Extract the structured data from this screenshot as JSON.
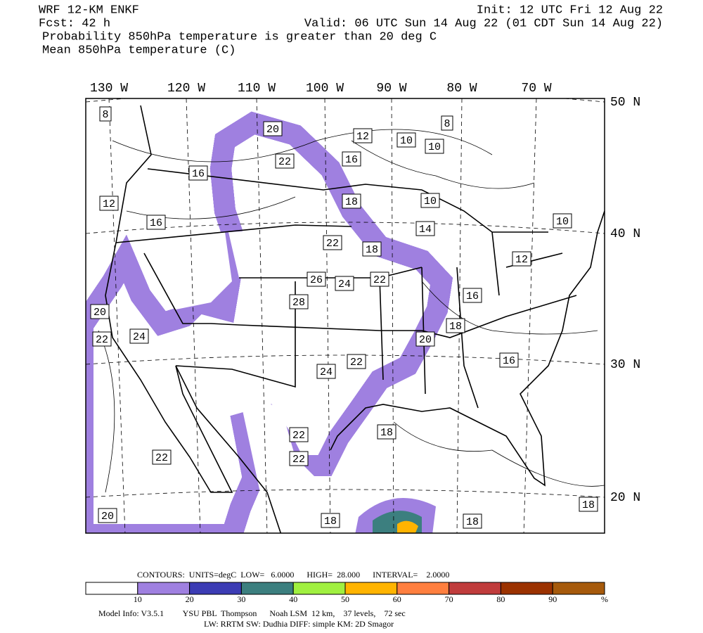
{
  "header": {
    "model": "WRF 12-KM ENKF",
    "init": "Init: 12 UTC Fri 12 Aug 22",
    "fcst": "Fcst:   42 h",
    "valid": "Valid: 06 UTC Sun 14 Aug 22 (01 CDT Sun 14 Aug 22)",
    "line1": "Probability 850hPa temperature is greater than 20 deg C",
    "line2": "Mean 850hPa temperature (C)"
  },
  "map": {
    "lon_labels": [
      "130 W",
      "120 W",
      "110 W",
      "100 W",
      "90 W",
      "80 W",
      "70 W"
    ],
    "lat_labels": [
      "50 N",
      "40 N",
      "30 N",
      "20 N"
    ],
    "contour_labels": [
      "8",
      "20",
      "12",
      "10",
      "10",
      "8",
      "22",
      "16",
      "16",
      "18",
      "10",
      "12",
      "16",
      "14",
      "10",
      "22",
      "18",
      "12",
      "26",
      "24",
      "22",
      "16",
      "28",
      "20",
      "18",
      "20",
      "22",
      "24",
      "16",
      "24",
      "22",
      "18",
      "22",
      "22",
      "22",
      "18",
      "20",
      "18",
      "18"
    ]
  },
  "footer": {
    "contours": "CONTOURS:  UNITS=degC  LOW=   6.0000      HIGH=  28.000      INTERVAL=    2.0000",
    "colorbar_labels": [
      "10",
      "20",
      "30",
      "40",
      "50",
      "60",
      "70",
      "80",
      "90",
      "%"
    ],
    "model_info": "Model Info: V3.5.1         YSU PBL  Thompson      Noah LSM  12 km,    37 levels,    72 sec",
    "physics": "LW: RRTM SW: Dudhia  DIFF: simple KM: 2D Smagor"
  }
}
